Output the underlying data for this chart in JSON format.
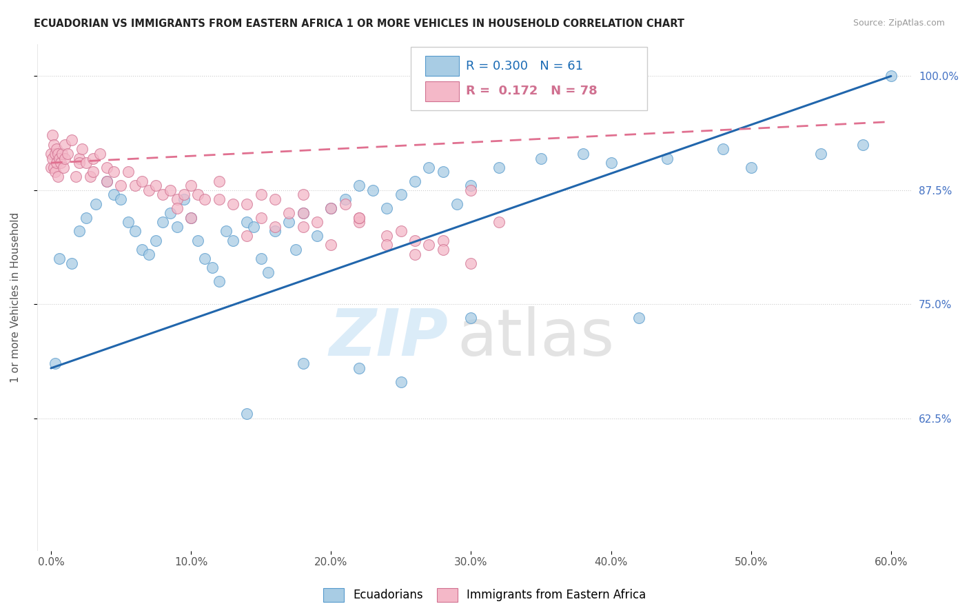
{
  "title": "ECUADORIAN VS IMMIGRANTS FROM EASTERN AFRICA 1 OR MORE VEHICLES IN HOUSEHOLD CORRELATION CHART",
  "source": "Source: ZipAtlas.com",
  "ylabel_label": "1 or more Vehicles in Household",
  "legend_label1": "Ecuadorians",
  "legend_label2": "Immigrants from Eastern Africa",
  "R1": "0.300",
  "N1": "61",
  "R2": "0.172",
  "N2": "78",
  "color_blue": "#a8cce4",
  "color_pink": "#f4b8c8",
  "color_blue_line": "#2166ac",
  "color_pink_line": "#e07090",
  "xlim": [
    -1.0,
    61.5
  ],
  "ylim": [
    48.0,
    103.5
  ],
  "ytick_positions": [
    62.5,
    75.0,
    87.5,
    100.0
  ],
  "ytick_labels": [
    "62.5%",
    "75.0%",
    "87.5%",
    "100.0%"
  ],
  "xtick_positions": [
    0.0,
    10.0,
    20.0,
    30.0,
    40.0,
    50.0,
    60.0
  ],
  "xtick_labels": [
    "0.0%",
    "10.0%",
    "20.0%",
    "30.0%",
    "40.0%",
    "50.0%",
    "60.0%"
  ],
  "blue_x": [
    0.3,
    0.6,
    1.5,
    2.0,
    2.5,
    3.2,
    4.0,
    4.5,
    5.0,
    5.5,
    6.0,
    6.5,
    7.0,
    7.5,
    8.0,
    8.5,
    9.0,
    9.5,
    10.0,
    10.5,
    11.0,
    11.5,
    12.0,
    12.5,
    13.0,
    14.0,
    14.5,
    15.0,
    15.5,
    16.0,
    17.0,
    17.5,
    18.0,
    19.0,
    20.0,
    21.0,
    22.0,
    23.0,
    24.0,
    25.0,
    26.0,
    27.0,
    28.0,
    29.0,
    30.0,
    32.0,
    35.0,
    38.0,
    40.0,
    44.0,
    48.0,
    50.0,
    55.0,
    58.0,
    60.0,
    14.0,
    18.0,
    22.0,
    25.0,
    30.0,
    42.0
  ],
  "blue_y": [
    68.5,
    80.0,
    79.5,
    83.0,
    84.5,
    86.0,
    88.5,
    87.0,
    86.5,
    84.0,
    83.0,
    81.0,
    80.5,
    82.0,
    84.0,
    85.0,
    83.5,
    86.5,
    84.5,
    82.0,
    80.0,
    79.0,
    77.5,
    83.0,
    82.0,
    84.0,
    83.5,
    80.0,
    78.5,
    83.0,
    84.0,
    81.0,
    85.0,
    82.5,
    85.5,
    86.5,
    88.0,
    87.5,
    85.5,
    87.0,
    88.5,
    90.0,
    89.5,
    86.0,
    88.0,
    90.0,
    91.0,
    91.5,
    90.5,
    91.0,
    92.0,
    90.0,
    91.5,
    92.5,
    100.0,
    63.0,
    68.5,
    68.0,
    66.5,
    73.5,
    73.5
  ],
  "pink_x": [
    0.0,
    0.0,
    0.1,
    0.1,
    0.2,
    0.2,
    0.3,
    0.3,
    0.4,
    0.4,
    0.5,
    0.5,
    0.6,
    0.7,
    0.8,
    0.9,
    1.0,
    1.0,
    1.2,
    1.5,
    1.8,
    2.0,
    2.0,
    2.2,
    2.5,
    2.8,
    3.0,
    3.0,
    3.5,
    4.0,
    4.0,
    4.5,
    5.0,
    5.5,
    6.0,
    6.5,
    7.0,
    7.5,
    8.0,
    8.5,
    9.0,
    9.5,
    10.0,
    10.5,
    11.0,
    12.0,
    13.0,
    14.0,
    15.0,
    16.0,
    17.0,
    18.0,
    19.0,
    20.0,
    21.0,
    22.0,
    24.0,
    25.0,
    26.0,
    27.0,
    28.0,
    30.0,
    32.0,
    15.0,
    18.0,
    20.0,
    9.0,
    10.0,
    12.0,
    14.0,
    16.0,
    22.0,
    24.0,
    26.0,
    28.0,
    30.0,
    18.0,
    22.0
  ],
  "pink_y": [
    91.5,
    90.0,
    93.5,
    91.0,
    92.5,
    90.0,
    91.5,
    89.5,
    92.0,
    90.5,
    91.5,
    89.0,
    91.0,
    90.5,
    91.5,
    90.0,
    92.5,
    91.0,
    91.5,
    93.0,
    89.0,
    91.0,
    90.5,
    92.0,
    90.5,
    89.0,
    91.0,
    89.5,
    91.5,
    90.0,
    88.5,
    89.5,
    88.0,
    89.5,
    88.0,
    88.5,
    87.5,
    88.0,
    87.0,
    87.5,
    86.5,
    87.0,
    88.0,
    87.0,
    86.5,
    88.5,
    86.0,
    86.0,
    87.0,
    86.5,
    85.0,
    85.0,
    84.0,
    85.5,
    86.0,
    84.0,
    82.5,
    83.0,
    82.0,
    81.5,
    82.0,
    87.5,
    84.0,
    84.5,
    83.5,
    81.5,
    85.5,
    84.5,
    86.5,
    82.5,
    83.5,
    84.5,
    81.5,
    80.5,
    81.0,
    79.5,
    87.0,
    84.5
  ]
}
